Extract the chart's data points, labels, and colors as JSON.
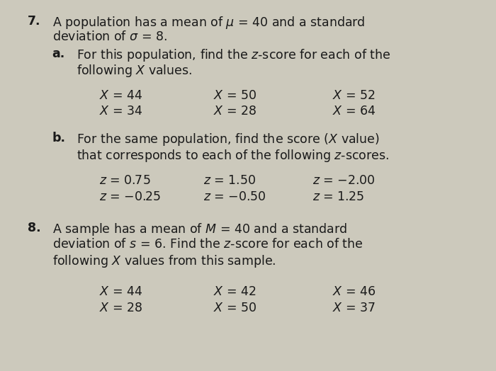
{
  "background_color": "#ccc9bc",
  "text_color": "#1a1a1a",
  "fig_width": 7.0,
  "fig_height": 5.24
}
